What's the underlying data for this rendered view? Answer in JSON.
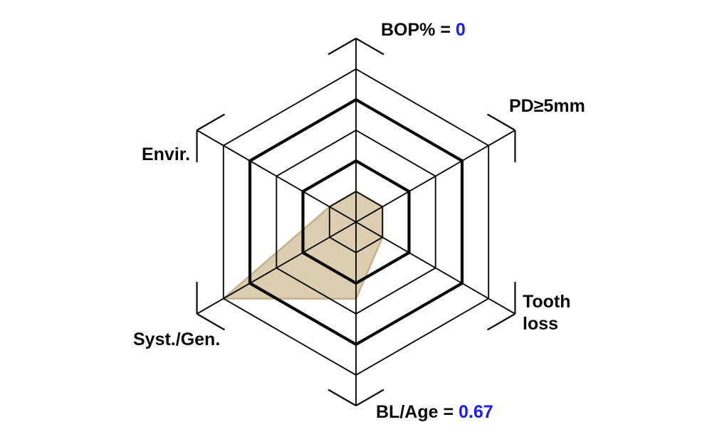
{
  "chart_data": {
    "type": "radar",
    "title": "",
    "description": "Hexagonal periodontal risk assessment spider diagram, 6 axes, 5 concentric hexagonal rings, no numeric tick labels shown",
    "rings": 5,
    "bold_rings": [
      2,
      4
    ],
    "grid": "on",
    "legend": "none",
    "axes": [
      {
        "id": "bop",
        "label": "BOP%",
        "value_text": "0",
        "value_rings": 1
      },
      {
        "id": "pd",
        "label": "PD≥5mm",
        "value_text": "",
        "value_rings": 1
      },
      {
        "id": "tooth",
        "label": "Tooth loss",
        "value_text": "",
        "value_rings": 1
      },
      {
        "id": "bl_age",
        "label": "BL/Age",
        "value_text": "0.67",
        "value_rings": 2.51
      },
      {
        "id": "syst_gen",
        "label": "Syst./Gen.",
        "value_text": "",
        "value_rings": 5
      },
      {
        "id": "envir",
        "label": "Envir.",
        "value_text": "",
        "value_rings": 1
      }
    ],
    "colors": {
      "line": "#0a0a0a",
      "fill": "#dccdb0",
      "fill_border": "#c5b18c",
      "label": "#0a0a0a",
      "value": "#1a1aff"
    }
  },
  "labels": {
    "bop": {
      "prefix": "BOP% = ",
      "value": "0"
    },
    "pd": {
      "prefix": "PD≥5mm",
      "value": ""
    },
    "tooth": {
      "prefix": "Tooth\nloss",
      "value": ""
    },
    "blage": {
      "prefix": "BL/Age = ",
      "value": "0.67"
    },
    "syst": {
      "prefix": "Syst./Gen.",
      "value": ""
    },
    "envir": {
      "prefix": "Envir.",
      "value": ""
    }
  }
}
